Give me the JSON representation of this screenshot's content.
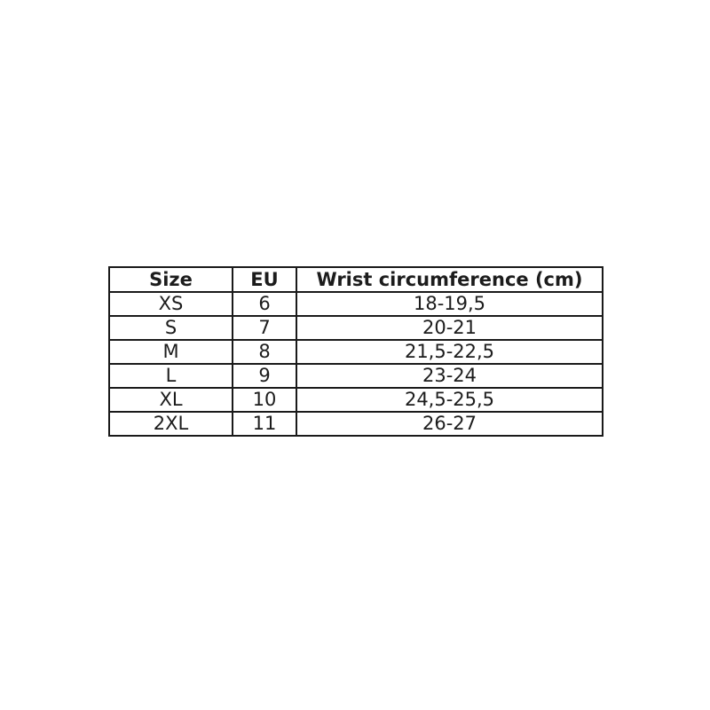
{
  "page": {
    "background_color": "#ffffff",
    "border_color": "#1a1a1a",
    "text_color": "#1c1c1c"
  },
  "table": {
    "columns": [
      "Size",
      "EU",
      "Wrist circumference (cm)"
    ],
    "rows": [
      [
        "XS",
        "6",
        "18-19,5"
      ],
      [
        "S",
        "7",
        "20-21"
      ],
      [
        "M",
        "8",
        "21,5-22,5"
      ],
      [
        "L",
        "9",
        "23-24"
      ],
      [
        "XL",
        "10",
        "24,5-25,5"
      ],
      [
        "2XL",
        "11",
        "26-27"
      ]
    ]
  },
  "chart_data": {
    "type": "table",
    "columns": [
      "Size",
      "EU",
      "Wrist circumference (cm)"
    ],
    "rows": [
      {
        "size": "XS",
        "eu": 6,
        "wrist_circumference_cm": "18-19,5"
      },
      {
        "size": "S",
        "eu": 7,
        "wrist_circumference_cm": "20-21"
      },
      {
        "size": "M",
        "eu": 8,
        "wrist_circumference_cm": "21,5-22,5"
      },
      {
        "size": "L",
        "eu": 9,
        "wrist_circumference_cm": "23-24"
      },
      {
        "size": "XL",
        "eu": 10,
        "wrist_circumference_cm": "24,5-25,5"
      },
      {
        "size": "2XL",
        "eu": 11,
        "wrist_circumference_cm": "26-27"
      }
    ]
  }
}
